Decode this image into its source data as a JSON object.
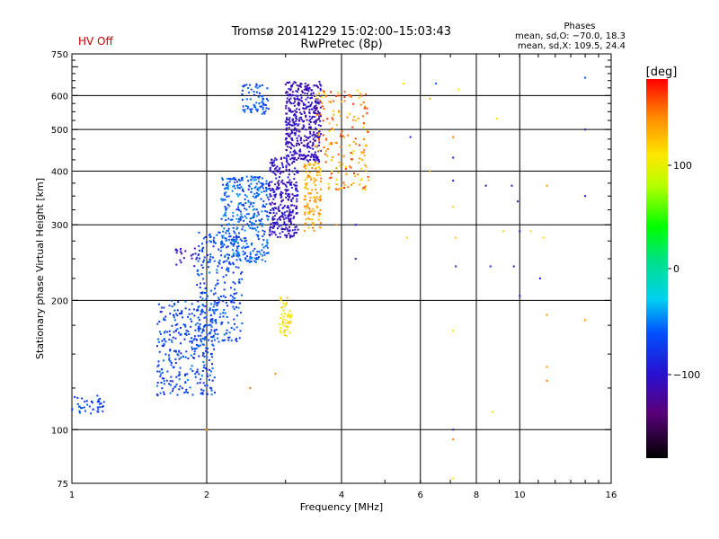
{
  "header": {
    "title_line1": "Tromsø 20141229 15:02:00–15:03:43",
    "title_line2": "RwPretec (8p)",
    "status": "HV Off",
    "phase_title": "Phases",
    "phase_o": "mean, sd,O: −70.0, 18.3",
    "phase_x": "mean, sd,X: 109.5, 24.4"
  },
  "colorbar": {
    "label": "[deg]",
    "ticks": [
      "100",
      "0",
      "−100"
    ],
    "range": [
      -180,
      180
    ]
  },
  "chart_data": {
    "type": "scatter",
    "xlabel": "Frequency [MHz]",
    "ylabel": "Stationary phase Virtual Height [km]",
    "xscale": "log",
    "yscale": "log",
    "xlim": [
      1,
      16
    ],
    "ylim": [
      75,
      750
    ],
    "xticks": [
      {
        "v": 1,
        "l": "1"
      },
      {
        "v": 2,
        "l": "2"
      },
      {
        "v": 4,
        "l": "4"
      },
      {
        "v": 6,
        "l": "6"
      },
      {
        "v": 8,
        "l": "8"
      },
      {
        "v": 10,
        "l": "10"
      },
      {
        "v": 16,
        "l": "16"
      }
    ],
    "yticks": [
      {
        "v": 75,
        "l": "75"
      },
      {
        "v": 100,
        "l": "100"
      },
      {
        "v": 200,
        "l": "200"
      },
      {
        "v": 300,
        "l": "300"
      },
      {
        "v": 400,
        "l": "400"
      },
      {
        "v": 500,
        "l": "500"
      },
      {
        "v": 600,
        "l": "600"
      },
      {
        "v": 750,
        "l": "750"
      }
    ],
    "xgrid": [
      2,
      4,
      6,
      8,
      10
    ],
    "ygrid": [
      100,
      200,
      300,
      400,
      500,
      600
    ],
    "clusters": [
      {
        "f": [
          1.0,
          1.18
        ],
        "h": [
          108,
          120
        ],
        "phase": [
          -85,
          -55
        ],
        "n": 40
      },
      {
        "f": [
          1.55,
          2.1
        ],
        "h": [
          120,
          200
        ],
        "phase": [
          -90,
          -50
        ],
        "n": 320
      },
      {
        "f": [
          1.9,
          2.4
        ],
        "h": [
          160,
          290
        ],
        "phase": [
          -85,
          -50
        ],
        "n": 260
      },
      {
        "f": [
          2.15,
          2.75
        ],
        "h": [
          245,
          390
        ],
        "phase": [
          -80,
          -40
        ],
        "n": 360
      },
      {
        "f": [
          2.4,
          2.75
        ],
        "h": [
          540,
          640
        ],
        "phase": [
          -80,
          -50
        ],
        "n": 70
      },
      {
        "f": [
          2.75,
          3.2
        ],
        "h": [
          280,
          430
        ],
        "phase": [
          -120,
          -90
        ],
        "n": 300
      },
      {
        "f": [
          3.0,
          3.6
        ],
        "h": [
          420,
          650
        ],
        "phase": [
          -125,
          -95
        ],
        "n": 420
      },
      {
        "f": [
          3.3,
          3.6
        ],
        "h": [
          290,
          420
        ],
        "phase": [
          120,
          150
        ],
        "n": 110
      },
      {
        "f": [
          3.5,
          4.6
        ],
        "h": [
          360,
          620
        ],
        "phase": [
          110,
          170
        ],
        "n": 180
      },
      {
        "f": [
          2.9,
          3.1
        ],
        "h": [
          165,
          205
        ],
        "phase": [
          95,
          125
        ],
        "n": 50
      },
      {
        "f": [
          1.7,
          1.9
        ],
        "h": [
          240,
          265
        ],
        "phase": [
          -115,
          -100
        ],
        "n": 20
      }
    ],
    "scatter": [
      {
        "x": 5.7,
        "y": 480,
        "p": -110
      },
      {
        "x": 6.3,
        "y": 400,
        "p": 140
      },
      {
        "x": 6.3,
        "y": 590,
        "p": 130
      },
      {
        "x": 6.5,
        "y": 640,
        "p": -60
      },
      {
        "x": 7.1,
        "y": 480,
        "p": 150
      },
      {
        "x": 7.1,
        "y": 430,
        "p": -110
      },
      {
        "x": 7.1,
        "y": 380,
        "p": -110
      },
      {
        "x": 7.1,
        "y": 330,
        "p": 120
      },
      {
        "x": 7.2,
        "y": 240,
        "p": -110
      },
      {
        "x": 7.1,
        "y": 170,
        "p": 110
      },
      {
        "x": 7.1,
        "y": 100,
        "p": -110
      },
      {
        "x": 7.1,
        "y": 95,
        "p": 150
      },
      {
        "x": 7.1,
        "y": 77,
        "p": 110
      },
      {
        "x": 7.2,
        "y": 280,
        "p": 120
      },
      {
        "x": 7.3,
        "y": 620,
        "p": 110
      },
      {
        "x": 8.4,
        "y": 370,
        "p": -110
      },
      {
        "x": 8.6,
        "y": 240,
        "p": -90
      },
      {
        "x": 8.7,
        "y": 110,
        "p": 110
      },
      {
        "x": 8.9,
        "y": 530,
        "p": 110
      },
      {
        "x": 9.2,
        "y": 290,
        "p": 120
      },
      {
        "x": 9.6,
        "y": 370,
        "p": -110
      },
      {
        "x": 9.7,
        "y": 240,
        "p": -110
      },
      {
        "x": 9.9,
        "y": 340,
        "p": -110
      },
      {
        "x": 10.0,
        "y": 290,
        "p": -110
      },
      {
        "x": 10.0,
        "y": 205,
        "p": -110
      },
      {
        "x": 10.6,
        "y": 290,
        "p": 110
      },
      {
        "x": 11.1,
        "y": 225,
        "p": -110
      },
      {
        "x": 11.5,
        "y": 370,
        "p": 140
      },
      {
        "x": 11.5,
        "y": 185,
        "p": 140
      },
      {
        "x": 11.5,
        "y": 140,
        "p": 140
      },
      {
        "x": 11.5,
        "y": 130,
        "p": 150
      },
      {
        "x": 11.3,
        "y": 280,
        "p": 110
      },
      {
        "x": 14.0,
        "y": 660,
        "p": -60
      },
      {
        "x": 14.0,
        "y": 500,
        "p": -110
      },
      {
        "x": 14.0,
        "y": 350,
        "p": -110
      },
      {
        "x": 14.0,
        "y": 180,
        "p": 140
      },
      {
        "x": 5.6,
        "y": 280,
        "p": 120
      },
      {
        "x": 4.3,
        "y": 250,
        "p": -110
      },
      {
        "x": 4.3,
        "y": 300,
        "p": -110
      },
      {
        "x": 3.9,
        "y": 300,
        "p": 140
      },
      {
        "x": 2.85,
        "y": 135,
        "p": 140
      },
      {
        "x": 2.5,
        "y": 125,
        "p": 150
      },
      {
        "x": 2.0,
        "y": 100,
        "p": 140
      },
      {
        "x": 5.5,
        "y": 640,
        "p": 110
      }
    ]
  }
}
